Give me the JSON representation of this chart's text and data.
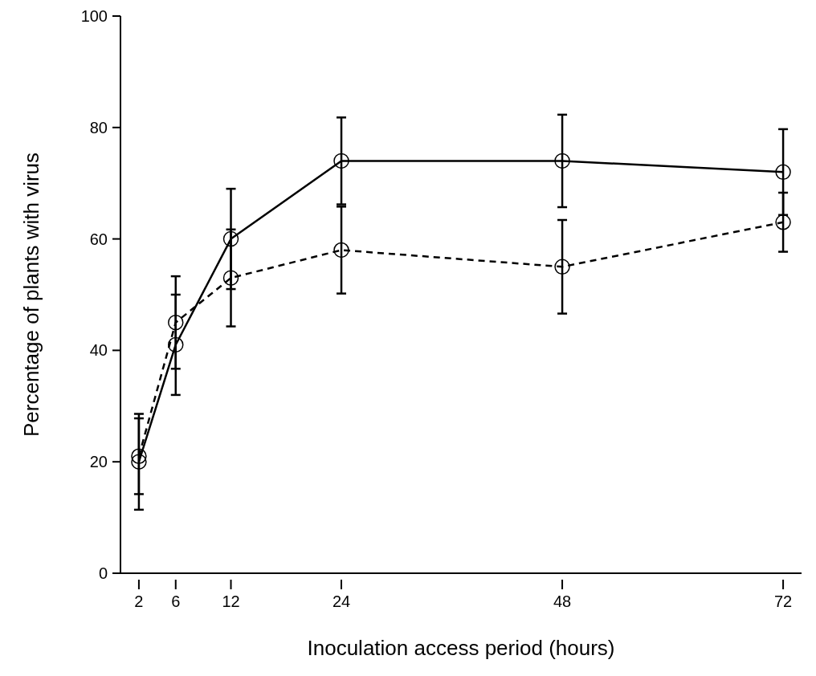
{
  "chart_data": {
    "type": "line",
    "xlabel": "Inoculation access period (hours)",
    "ylabel": "Percentage of plants with virus",
    "x": [
      2,
      6,
      12,
      24,
      48,
      72
    ],
    "xlim": [
      0,
      74
    ],
    "xticks": [
      2,
      6,
      12,
      24,
      48,
      72
    ],
    "ylim": [
      0,
      100
    ],
    "yticks": [
      0,
      20,
      40,
      60,
      80,
      100
    ],
    "marker": "circle",
    "series": [
      {
        "color": "#000000",
        "line_style": "solid",
        "values": [
          20,
          41,
          60,
          74,
          74,
          72
        ],
        "errors": [
          8.6,
          9,
          9,
          7.8,
          8.3,
          7.7
        ]
      },
      {
        "color": "#000000",
        "line_style": "dashed",
        "values": [
          21,
          45,
          53,
          58,
          55,
          63
        ],
        "errors": [
          6.8,
          8.3,
          8.7,
          7.8,
          8.4,
          5.3
        ]
      }
    ]
  }
}
